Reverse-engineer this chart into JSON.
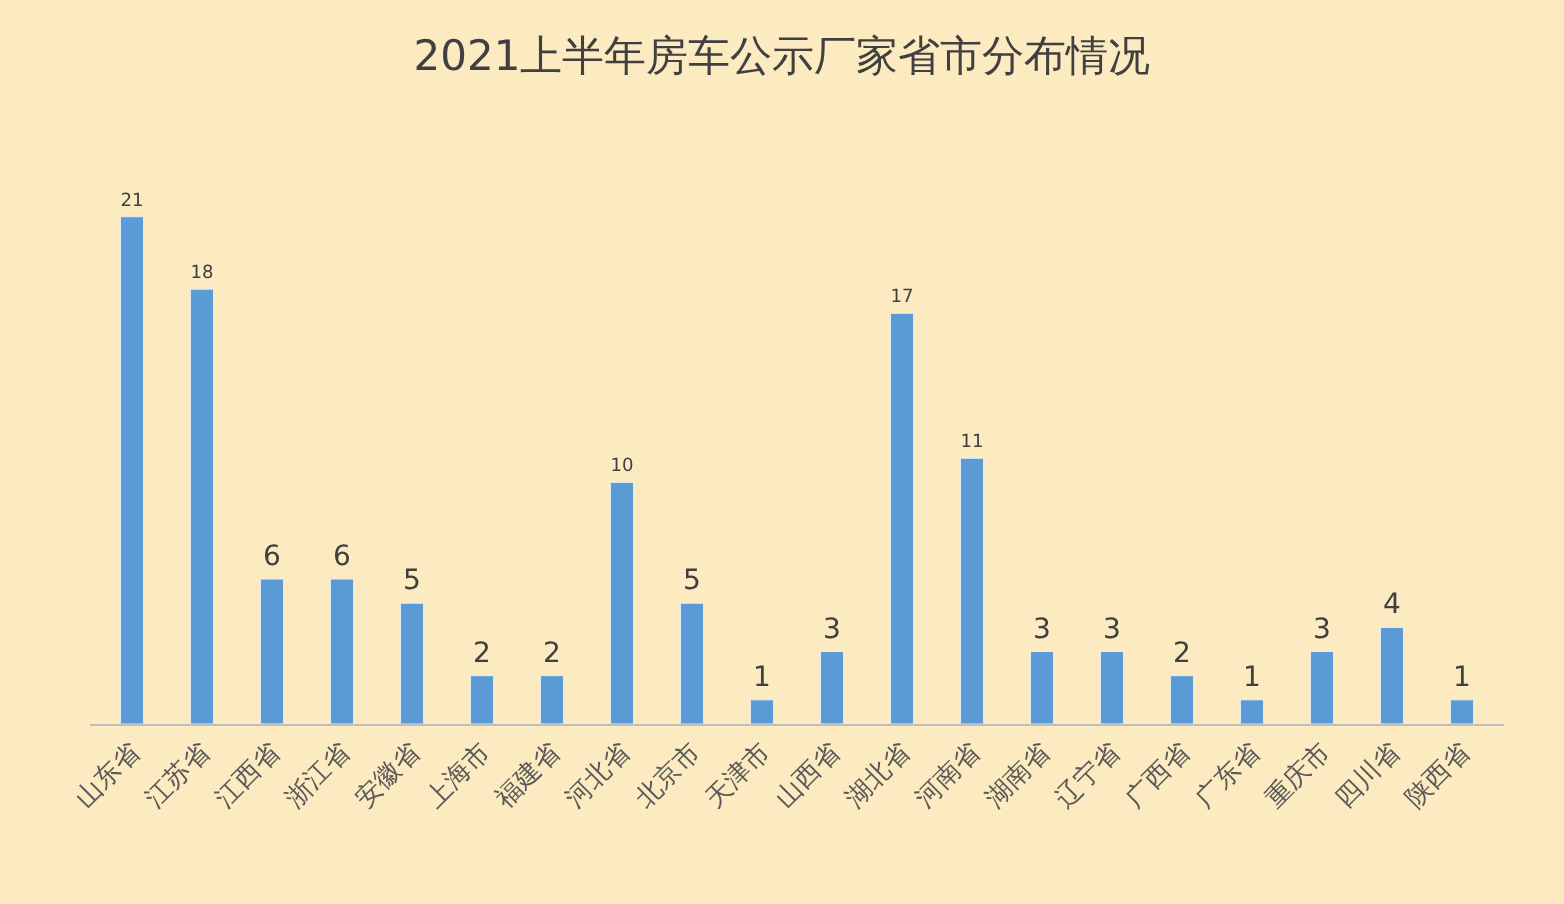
{
  "chart_data": {
    "type": "bar",
    "title": "2021上半年房车公示厂家省市分布情况",
    "categories": [
      "山东省",
      "江苏省",
      "江西省",
      "浙江省",
      "安徽省",
      "上海市",
      "福建省",
      "河北省",
      "北京市",
      "天津市",
      "山西省",
      "湖北省",
      "河南省",
      "湖南省",
      "辽宁省",
      "广西省",
      "广东省",
      "重庆市",
      "四川省",
      "陕西省"
    ],
    "values": [
      21,
      18,
      6,
      6,
      5,
      2,
      2,
      10,
      5,
      1,
      3,
      17,
      11,
      3,
      3,
      2,
      1,
      3,
      4,
      1
    ],
    "color": "#5b9bd5",
    "data_labels": true,
    "grid": false,
    "legend": false
  }
}
